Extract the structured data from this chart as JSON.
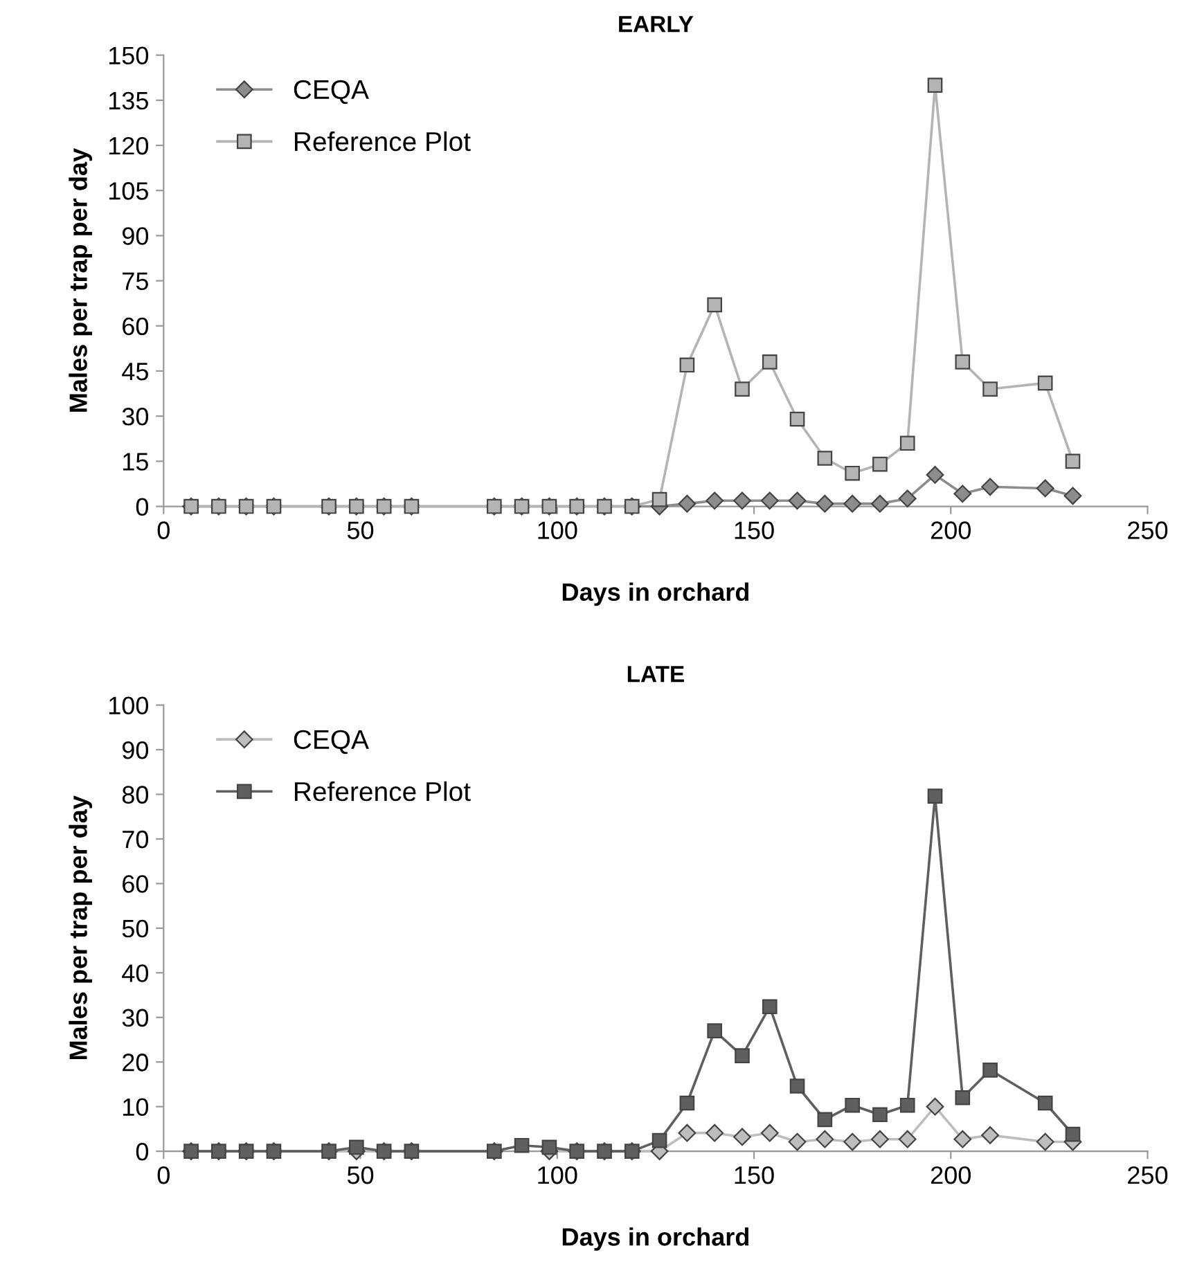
{
  "chart_data": [
    {
      "type": "line",
      "title": "EARLY",
      "xlabel": "Days in orchard",
      "ylabel": "Males per trap per day",
      "x": [
        7,
        14,
        21,
        28,
        42,
        49,
        56,
        63,
        84,
        91,
        98,
        105,
        112,
        119,
        126,
        133,
        140,
        147,
        154,
        161,
        168,
        175,
        182,
        189,
        196,
        203,
        210,
        224,
        231
      ],
      "xlim": [
        0,
        250
      ],
      "xticks": [
        0,
        50,
        100,
        150,
        200,
        250
      ],
      "ylim": [
        0,
        150
      ],
      "yticks": [
        0,
        15,
        30,
        45,
        60,
        75,
        90,
        105,
        120,
        135,
        150
      ],
      "grid": false,
      "legend": "top left",
      "line_style": "solid",
      "series": [
        {
          "name": "CEQA",
          "color": "#8c8c8c",
          "marker": "diamond",
          "values": [
            0,
            0,
            0,
            0,
            0,
            0,
            0,
            0,
            0,
            0,
            0,
            0,
            0,
            0,
            0,
            0.9,
            1.9,
            1.9,
            1.9,
            1.9,
            0.9,
            0.9,
            0.9,
            2.6,
            10.5,
            4.2,
            6.5,
            6,
            3.5
          ]
        },
        {
          "name": "Reference Plot",
          "color": "#b4b4b4",
          "marker": "square",
          "values": [
            0,
            0,
            0,
            0,
            0,
            0,
            0,
            0,
            0,
            0,
            0,
            0,
            0,
            0,
            2.3,
            47,
            67,
            39,
            48,
            29,
            16,
            11,
            14,
            21,
            140,
            48,
            39,
            41,
            15
          ]
        }
      ]
    },
    {
      "type": "line",
      "title": "LATE",
      "xlabel": "Days in orchard",
      "ylabel": "Males per trap per day",
      "x": [
        7,
        14,
        21,
        28,
        42,
        49,
        56,
        63,
        84,
        91,
        98,
        105,
        112,
        119,
        126,
        133,
        140,
        147,
        154,
        161,
        168,
        175,
        182,
        189,
        196,
        203,
        210,
        224,
        231
      ],
      "xlim": [
        0,
        250
      ],
      "xticks": [
        0,
        50,
        100,
        150,
        200,
        250
      ],
      "ylim": [
        0,
        100
      ],
      "yticks": [
        0,
        10,
        20,
        30,
        40,
        50,
        60,
        70,
        80,
        90,
        100
      ],
      "grid": false,
      "legend": "top left",
      "line_style": "solid",
      "series": [
        {
          "name": "CEQA",
          "color": "#bdbdbd",
          "marker": "diamond",
          "values": [
            0,
            0,
            0,
            0,
            0,
            0,
            0,
            0,
            0,
            null,
            0,
            0,
            0,
            0,
            0,
            4.1,
            4.1,
            3.2,
            4.1,
            2.1,
            2.7,
            2.1,
            2.7,
            2.7,
            10,
            2.7,
            3.6,
            2.1,
            2.1
          ]
        },
        {
          "name": "Reference Plot",
          "color": "#5f5f5f",
          "marker": "square",
          "values": [
            0,
            0,
            0,
            0,
            0,
            0.9,
            0,
            0,
            0,
            1.3,
            0.9,
            0,
            0,
            0,
            2.4,
            10.8,
            27,
            21.4,
            32.4,
            14.6,
            7.1,
            10.3,
            8.2,
            10.3,
            79.6,
            12,
            18.2,
            10.8,
            3.8
          ]
        }
      ]
    }
  ]
}
